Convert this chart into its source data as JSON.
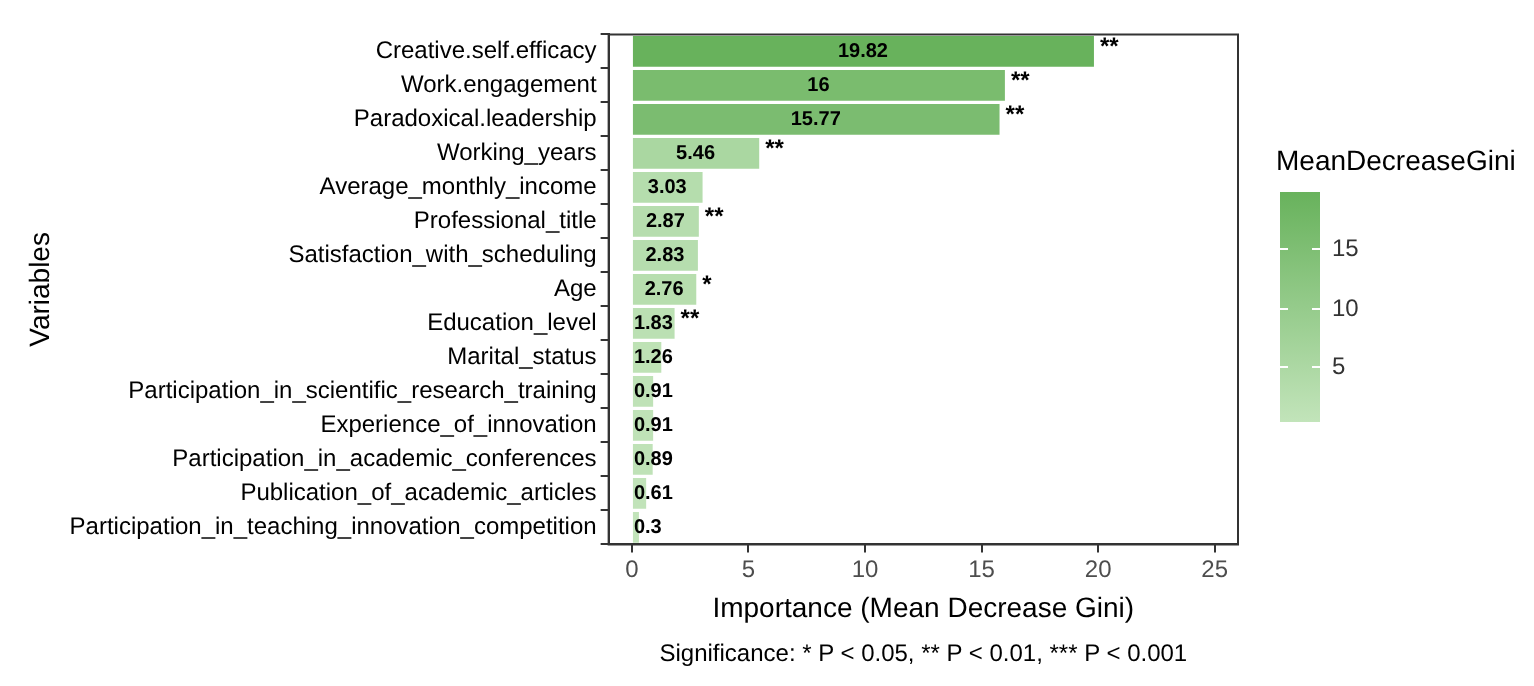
{
  "chart_data": {
    "type": "bar",
    "orientation": "horizontal",
    "xlabel": "Importance (Mean Decrease Gini)",
    "ylabel": "Variables",
    "legend_title": "MeanDecreaseGini",
    "categories": [
      "Creative.self.efficacy",
      "Work.engagement",
      "Paradoxical.leadership",
      "Working_years",
      "Average_monthly_income",
      "Professional_title",
      "Satisfaction_with_scheduling",
      "Age",
      "Education_level",
      "Marital_status",
      "Participation_in_scientific_research_training",
      "Experience_of_innovation",
      "Participation_in_academic_conferences",
      "Publication_of_academic_articles",
      "Participation_in_teaching_innovation_competition"
    ],
    "values": [
      19.82,
      16,
      15.77,
      5.46,
      3.03,
      2.87,
      2.83,
      2.76,
      1.83,
      1.26,
      0.91,
      0.91,
      0.89,
      0.61,
      0.3
    ],
    "colors": [
      "#68b25c",
      "#7abc6e",
      "#7bbc70",
      "#aad7a1",
      "#b5ddad",
      "#b6ddae",
      "#b6ddae",
      "#b7deae",
      "#bbe0b3",
      "#bee2b5",
      "#bfe2b7",
      "#bfe2b7",
      "#bfe2b7",
      "#c1e3b9",
      "#c2e4ba"
    ],
    "data_labels": true,
    "xlim": [
      -1,
      26
    ],
    "xticks": [
      0,
      5,
      10,
      15,
      20,
      25
    ],
    "grid": false,
    "clim": [
      0.3,
      19.82
    ],
    "cticks": [
      5,
      10,
      15
    ],
    "annotations": [
      {
        "text": "**",
        "x": 19.82,
        "y": "Creative.self.efficacy"
      },
      {
        "text": "**",
        "x": 16,
        "y": "Work.engagement"
      },
      {
        "text": "**",
        "x": 15.77,
        "y": "Paradoxical.leadership"
      },
      {
        "text": "**",
        "x": 5.46,
        "y": "Working_years"
      },
      {
        "text": "**",
        "x": 2.87,
        "y": "Professional_title"
      },
      {
        "text": "*",
        "x": 2.76,
        "y": "Age"
      },
      {
        "text": "**",
        "x": 1.83,
        "y": "Education_level"
      },
      "Significance: * P < 0.05, ** P < 0.01, *** P < 0.001"
    ]
  }
}
